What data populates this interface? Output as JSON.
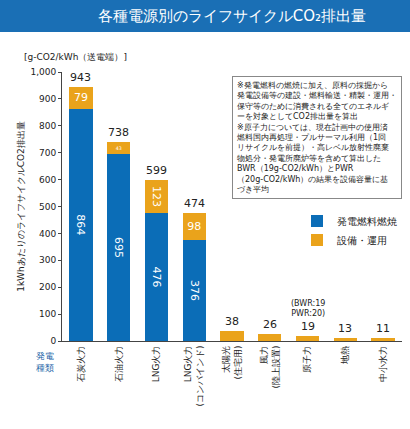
{
  "chart_data": {
    "type": "bar",
    "title": "各種電源別のライフサイクルCO₂排出量",
    "y_label": "1kWhあたりのライフサイクルCO2排出量",
    "y_unit": "[g-CO2/kWh（送電端）]",
    "x_label": "発電\n種類",
    "categories": [
      "石炭火力",
      "石油火力",
      "LNG火力",
      "LNG火力\n(コンバインド)",
      "太陽光\n(住宅用)",
      "風力\n(陸上設置)",
      "原子力",
      "地熱",
      "中小水力"
    ],
    "series": [
      {
        "name": "発電燃料燃焼",
        "color": "#0b6db7",
        "values": [
          864,
          695,
          476,
          376,
          null,
          null,
          null,
          null,
          null
        ]
      },
      {
        "name": "設備・運用",
        "color": "#eaa31b",
        "values": [
          79,
          43,
          123,
          98,
          38,
          26,
          19,
          13,
          11
        ],
        "value_labels": [
          "79",
          "43",
          "123",
          "98",
          null,
          null,
          null,
          null,
          null
        ]
      }
    ],
    "totals": [
      943,
      738,
      599,
      474,
      38,
      26,
      19,
      13,
      11
    ],
    "stacked": true,
    "data_labels": true,
    "legend": "right",
    "grid": false,
    "ylim": [
      0,
      1000
    ],
    "yticks": [
      0,
      100,
      200,
      300,
      400,
      500,
      600,
      700,
      800,
      900,
      {
        "value": 1000,
        "label": "1,000"
      }
    ],
    "annotations": [
      {
        "category": "原子力",
        "y": 19,
        "text": "(BWR:19\nPWR:20)"
      }
    ],
    "notes": [
      "※発電燃料の燃焼に加え、原料の採掘から",
      "発電設備等の建設・燃料輸送・精製・運用・",
      "保守等のために消費される全てのエネルギ",
      "ーを対象としてCO2排出量を算出",
      "※原子力については、現在計画中の使用済",
      "燃料国内再処理・プルサーマル利用（1回",
      "リサイクルを前提）・高レベル放射性廃棄",
      "物処分・発電所廃炉等を含めて算出した",
      "BWR（19g-CO2/kWh）とPWR",
      "（20g-CO2/kWh）の結果を設備容量に基",
      "づき平均"
    ]
  }
}
